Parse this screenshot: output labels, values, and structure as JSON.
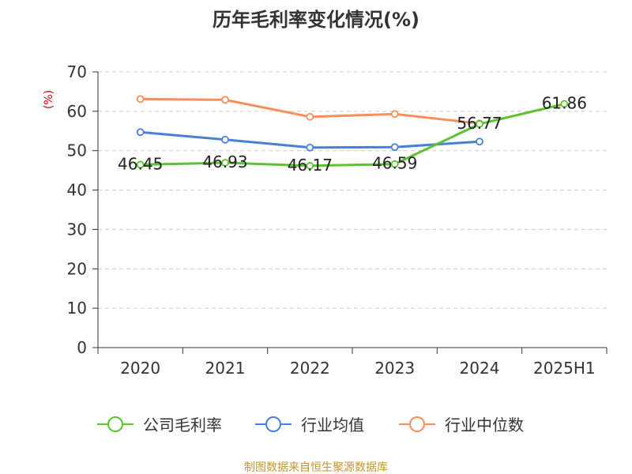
{
  "chart_data": {
    "type": "line",
    "title": "历年毛利率变化情况(%)",
    "unit_label": "(%)",
    "xlabel": "",
    "ylabel": "",
    "categories": [
      "2020",
      "2021",
      "2022",
      "2023",
      "2024",
      "2025H1"
    ],
    "ylim": [
      0,
      70
    ],
    "yticks": [
      0,
      10,
      20,
      30,
      40,
      50,
      60,
      70
    ],
    "grid": true,
    "legend_position": "bottom",
    "series": [
      {
        "name": "公司毛利率",
        "color": "#5cc232",
        "values": [
          46.45,
          46.93,
          46.17,
          46.59,
          56.77,
          61.86
        ],
        "labels": [
          "46.45",
          "46.93",
          "46.17",
          "46.59",
          "56.77",
          "61.86"
        ]
      },
      {
        "name": "行业均值",
        "color": "#4a7fd8",
        "values": [
          54.7,
          52.8,
          50.8,
          50.9,
          52.3,
          null
        ],
        "labels": []
      },
      {
        "name": "行业中位数",
        "color": "#f5905c",
        "values": [
          63.1,
          62.9,
          58.6,
          59.3,
          56.9,
          null
        ],
        "labels": []
      }
    ],
    "source": "制图数据来自恒生聚源数据库"
  }
}
